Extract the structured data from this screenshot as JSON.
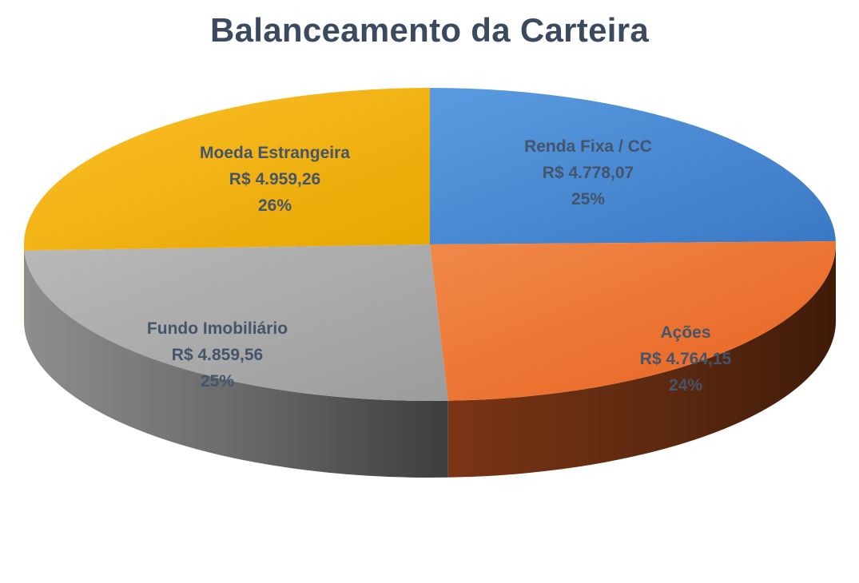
{
  "chart_data": {
    "type": "pie",
    "style": "3d",
    "title": "Balanceamento da Carteira",
    "currency_prefix": "R$ ",
    "slices": [
      {
        "name": "Renda Fixa / CC",
        "amount": "4.778,07",
        "value": 4778.07,
        "percent": "25%",
        "color": "#4a8ad6",
        "shade": "#2f5f99"
      },
      {
        "name": "Ações",
        "amount": "4.764,15",
        "value": 4764.15,
        "percent": "24%",
        "color": "#ee7b34",
        "shade": "#6a2a10"
      },
      {
        "name": "Fundo Imobiliário",
        "amount": "4.859,56",
        "value": 4859.56,
        "percent": "25%",
        "color": "#a9a9a9",
        "shade": "#5a5a5a"
      },
      {
        "name": "Moeda Estrangeira",
        "amount": "4.959,26",
        "value": 4959.26,
        "percent": "26%",
        "color": "#fbb910",
        "shade": "#9a6f00"
      }
    ]
  }
}
